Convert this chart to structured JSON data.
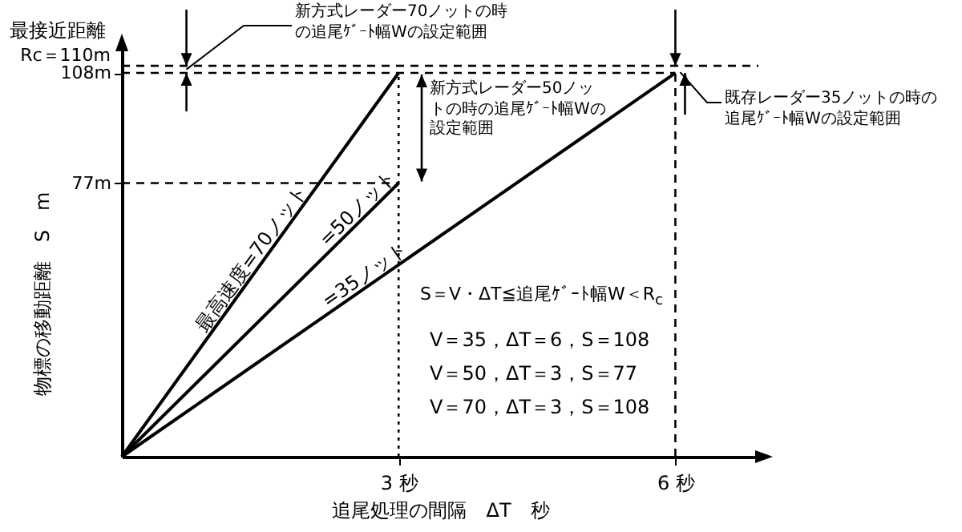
{
  "chart_data": {
    "type": "line",
    "xlabel": "追尾処理の間隔　ΔT　秒",
    "ylabel": "物標の移動距離　S　m",
    "xlim": [
      0,
      6.9
    ],
    "ylim": [
      0,
      115
    ],
    "xticks": [
      {
        "value": 3,
        "label": "3 秒"
      },
      {
        "value": 6,
        "label": "6 秒"
      }
    ],
    "yticks": [
      {
        "value": 77,
        "label": "77m"
      },
      {
        "value": 108,
        "label": "108m"
      }
    ],
    "series": [
      {
        "name": "最高速度=70ノット",
        "color": "#000000",
        "x": [
          0,
          3
        ],
        "values": [
          0,
          108
        ]
      },
      {
        "name": "=50ノット",
        "color": "#000000",
        "x": [
          0,
          3
        ],
        "values": [
          0,
          77
        ]
      },
      {
        "name": "=35ノット",
        "color": "#000000",
        "x": [
          0,
          6
        ],
        "values": [
          0,
          108
        ]
      }
    ],
    "ref_lines": [
      {
        "axis": "y",
        "value": 110,
        "line_style": "dashed",
        "label": "Rc＝110m"
      },
      {
        "axis": "y",
        "value": 108,
        "line_style": "dashed"
      },
      {
        "axis": "y",
        "value": 77,
        "line_style": "dashed"
      },
      {
        "axis": "x",
        "value": 3,
        "line_style": "dotted"
      },
      {
        "axis": "x",
        "value": 6,
        "line_style": "dashed"
      }
    ],
    "annotations": [
      "最接近距離",
      {
        "text": "新方式レーダー70ノットの時の追尾ｹﾞｰﾄ幅Wの設定範囲",
        "x": 0.7,
        "y": 109
      },
      "新方式レーダー50ノットの時の追尾ｹﾞｰﾄ幅Wの設定範囲",
      "既存レーダー35ノットの時の追尾ｹﾞｰﾄ幅Wの設定範囲",
      "S＝V・ΔT≦追尾ｹﾞｰﾄ幅W＜R$_{c}$",
      "V＝35，ΔT＝6，S＝108",
      "V＝50，ΔT＝3，S＝77",
      "V＝70，ΔT＝3，S＝108"
    ]
  }
}
